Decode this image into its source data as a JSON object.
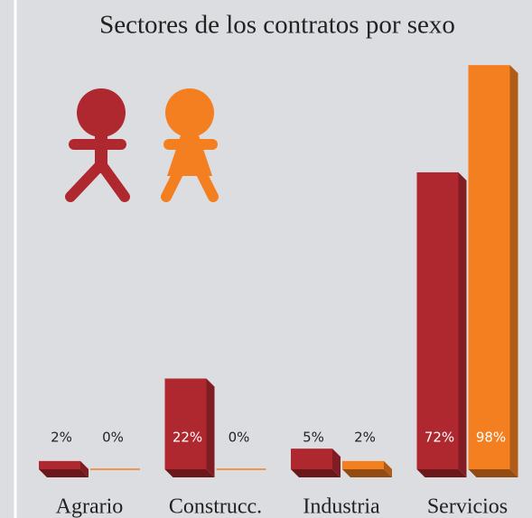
{
  "chart_data": {
    "type": "bar",
    "title": "Sectores de los contratos por sexo",
    "categories": [
      "Agrario",
      "Construcc.",
      "Industria",
      "Servicios"
    ],
    "series": [
      {
        "color": "#b0282f",
        "values": [
          2,
          22,
          5,
          72
        ],
        "value_labels": [
          "2%",
          "22%",
          "5%",
          "72%"
        ]
      },
      {
        "color": "#f47f20",
        "values": [
          0,
          0,
          2,
          98
        ],
        "value_labels": [
          "0%",
          "0%",
          "2%",
          "98%"
        ]
      }
    ]
  }
}
